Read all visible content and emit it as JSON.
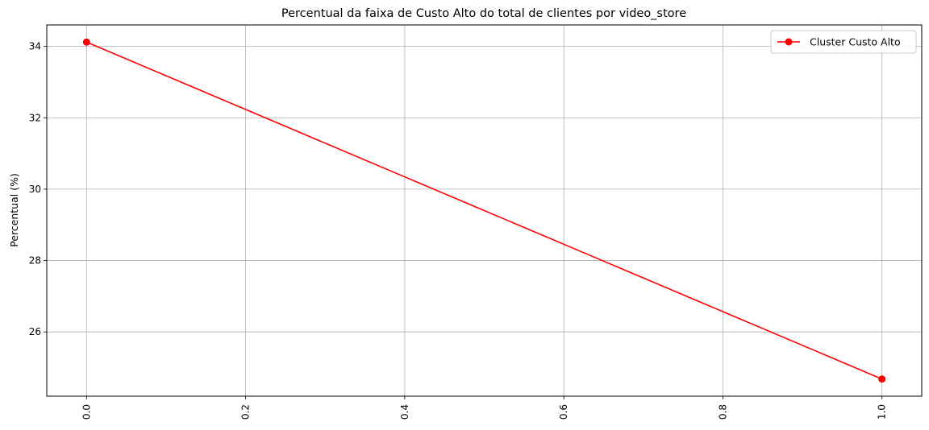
{
  "chart_data": {
    "type": "line",
    "title": "Percentual da faixa de Custo Alto do total de clientes por video_store",
    "xlabel": "",
    "ylabel": "Percentual (%)",
    "xlim": [
      -0.05,
      1.05
    ],
    "ylim": [
      24.2,
      34.6
    ],
    "x_ticks": [
      0.0,
      0.2,
      0.4,
      0.6,
      0.8,
      1.0
    ],
    "x_tick_labels": [
      "0.0",
      "0.2",
      "0.4",
      "0.6",
      "0.8",
      "1.0"
    ],
    "y_ticks": [
      26,
      28,
      30,
      32,
      34
    ],
    "y_tick_labels": [
      "26",
      "28",
      "30",
      "32",
      "34"
    ],
    "grid": true,
    "legend_position": "top-right",
    "series": [
      {
        "name": "Cluster Custo Alto",
        "color": "#ff0000",
        "marker": "circle",
        "x": [
          0.0,
          1.0
        ],
        "y": [
          34.12,
          24.68
        ]
      }
    ]
  }
}
